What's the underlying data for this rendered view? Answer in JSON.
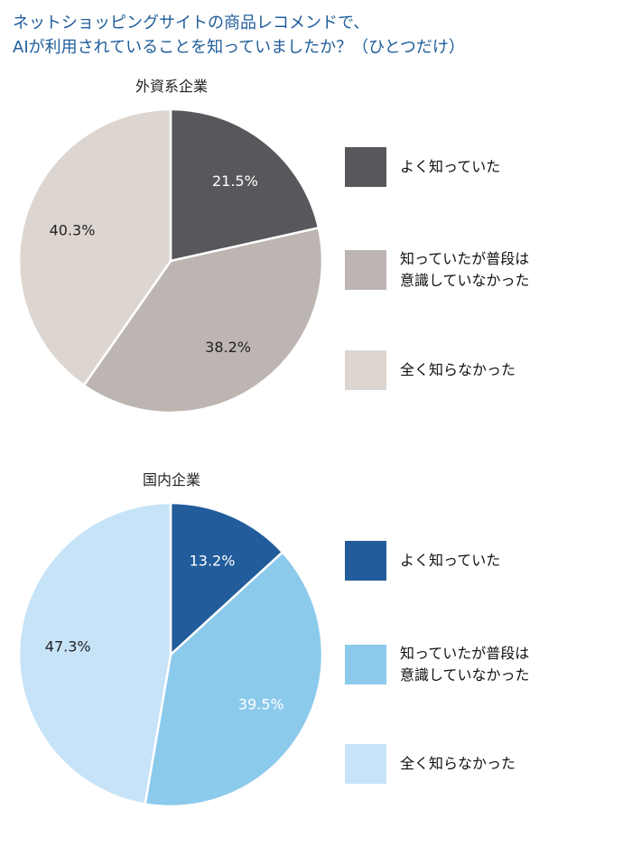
{
  "title": {
    "line1": "ネットショッピングサイトの商品レコメンドで、",
    "line2": "AIが利用されていることを知っていましたか？（ひとつだけ）"
  },
  "chart_data": [
    {
      "type": "pie",
      "title": "外資系企業",
      "categories": [
        "よく知っていた",
        "知っていたが普段は\n意識していなかった",
        "全く知らなかった"
      ],
      "values": [
        21.5,
        38.2,
        40.3
      ],
      "data_labels": [
        "21.5%",
        "38.2%",
        "40.3%"
      ],
      "colors": [
        "#58585c",
        "#bdb5b2",
        "#ddd6d0"
      ],
      "label_colors": [
        "#ffffff",
        "#222222",
        "#222222"
      ],
      "legend": "right"
    },
    {
      "type": "pie",
      "title": "国内企業",
      "categories": [
        "よく知っていた",
        "知っていたが普段は\n意識していなかった",
        "全く知らなかった"
      ],
      "values": [
        13.2,
        39.5,
        47.3
      ],
      "data_labels": [
        "13.2%",
        "39.5%",
        "47.3%"
      ],
      "colors": [
        "#225c9b",
        "#8ccaec",
        "#c6e3f7"
      ],
      "label_colors": [
        "#ffffff",
        "#ffffff",
        "#222222"
      ],
      "legend": "right"
    }
  ]
}
